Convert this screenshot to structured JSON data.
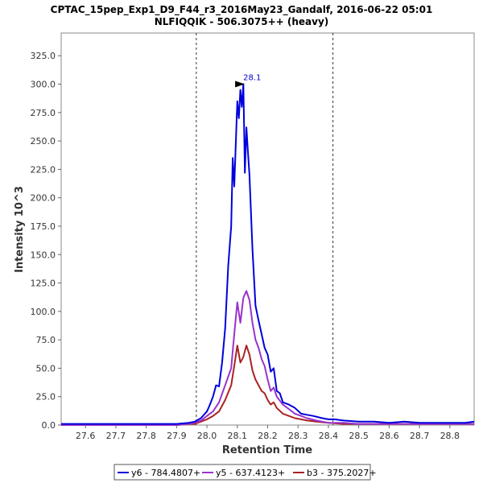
{
  "chart_data": {
    "type": "line",
    "title": "CPTAC_15pep_Exp1_D9_F44_r3_2016May23_Gandalf, 2016-06-22 05:01",
    "subtitle": "NLFIQQIK - 506.3075++ (heavy)",
    "xlabel": "Retention Time",
    "ylabel": "Intensity 10^3",
    "xlim": [
      27.52,
      28.88
    ],
    "ylim": [
      0,
      345
    ],
    "x_ticks": [
      "27.6",
      "27.7",
      "27.8",
      "27.9",
      "28.0",
      "28.1",
      "28.2",
      "28.3",
      "28.4",
      "28.5",
      "28.6",
      "28.7",
      "28.8"
    ],
    "y_ticks": [
      "0.0",
      "25.0",
      "50.0",
      "75.0",
      "100.0",
      "125.0",
      "150.0",
      "175.0",
      "200.0",
      "225.0",
      "250.0",
      "275.0",
      "300.0",
      "325.0"
    ],
    "grid": false,
    "legend_position": "bottom",
    "integration_bounds": [
      27.965,
      28.415
    ],
    "peak_annotation": {
      "x": 28.13,
      "y": 300,
      "label": "28.1"
    },
    "series": [
      {
        "name": "y6 - 784.4807+",
        "color": "#0000dd",
        "x": [
          27.52,
          27.6,
          27.7,
          27.8,
          27.9,
          27.94,
          27.96,
          27.98,
          28.0,
          28.01,
          28.02,
          28.03,
          28.04,
          28.05,
          28.06,
          28.07,
          28.08,
          28.085,
          28.09,
          28.1,
          28.105,
          28.11,
          28.115,
          28.12,
          28.125,
          28.13,
          28.135,
          28.14,
          28.15,
          28.16,
          28.17,
          28.18,
          28.19,
          28.2,
          28.21,
          28.22,
          28.23,
          28.24,
          28.25,
          28.27,
          28.29,
          28.31,
          28.33,
          28.35,
          28.38,
          28.4,
          28.42,
          28.45,
          28.5,
          28.55,
          28.6,
          28.65,
          28.7,
          28.75,
          28.8,
          28.85,
          28.88
        ],
        "values": [
          1,
          1,
          1,
          1,
          1,
          2,
          3,
          6,
          12,
          18,
          25,
          35,
          34,
          55,
          85,
          140,
          175,
          235,
          210,
          285,
          270,
          295,
          280,
          300,
          222,
          262,
          240,
          220,
          155,
          105,
          92,
          80,
          68,
          62,
          47,
          50,
          30,
          28,
          20,
          18,
          15,
          10,
          9,
          8,
          6,
          5,
          5,
          4,
          3,
          3,
          2,
          3,
          2,
          2,
          2,
          2,
          3
        ]
      },
      {
        "name": "y5 - 637.4123+",
        "color": "#9933cc",
        "x": [
          27.52,
          27.6,
          27.7,
          27.8,
          27.9,
          27.94,
          27.96,
          27.98,
          28.0,
          28.02,
          28.04,
          28.06,
          28.08,
          28.09,
          28.1,
          28.11,
          28.12,
          28.13,
          28.14,
          28.15,
          28.16,
          28.17,
          28.18,
          28.19,
          28.2,
          28.21,
          28.22,
          28.23,
          28.25,
          28.27,
          28.29,
          28.31,
          28.33,
          28.36,
          28.4,
          28.45,
          28.5,
          28.6,
          28.7,
          28.8,
          28.88
        ],
        "values": [
          0,
          0,
          0,
          0,
          0,
          1,
          2,
          4,
          8,
          12,
          20,
          35,
          50,
          80,
          108,
          90,
          112,
          118,
          110,
          90,
          75,
          68,
          58,
          52,
          40,
          30,
          33,
          25,
          18,
          14,
          10,
          8,
          6,
          4,
          2,
          2,
          1,
          1,
          1,
          1,
          1
        ]
      },
      {
        "name": "b3 - 375.2027+",
        "color": "#aa2222",
        "x": [
          27.52,
          27.6,
          27.7,
          27.8,
          27.9,
          27.94,
          27.96,
          27.98,
          28.0,
          28.02,
          28.04,
          28.06,
          28.08,
          28.09,
          28.1,
          28.11,
          28.12,
          28.13,
          28.14,
          28.15,
          28.16,
          28.17,
          28.18,
          28.19,
          28.2,
          28.21,
          28.22,
          28.23,
          28.25,
          28.27,
          28.29,
          28.31,
          28.33,
          28.36,
          28.4,
          28.45,
          28.5,
          28.6,
          28.7,
          28.8,
          28.88
        ],
        "values": [
          0,
          0,
          0,
          0,
          0,
          1,
          1,
          3,
          5,
          8,
          12,
          22,
          35,
          52,
          70,
          55,
          60,
          70,
          62,
          48,
          40,
          35,
          30,
          28,
          22,
          18,
          20,
          15,
          10,
          8,
          6,
          5,
          4,
          3,
          2,
          1,
          1,
          1,
          1,
          1,
          1
        ]
      }
    ]
  }
}
